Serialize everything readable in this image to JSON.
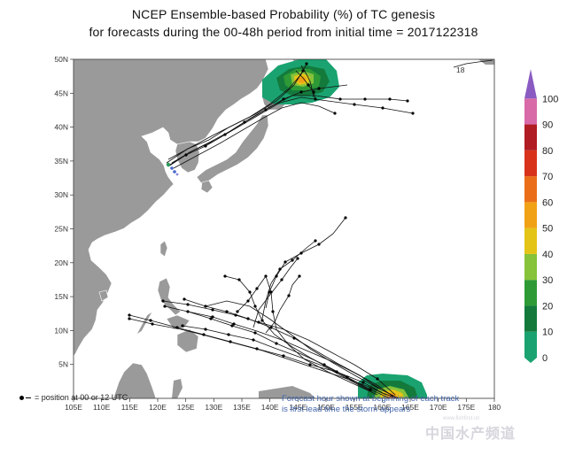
{
  "title_line1": "NCEP Ensemble-based Probability (%) of TC genesis",
  "title_line2": "for forecasts during the 00-48h period from initial time = 2017122318",
  "lon_ticks": [
    "105E",
    "110E",
    "115E",
    "120E",
    "125E",
    "130E",
    "135E",
    "140E",
    "145E",
    "150E",
    "155E",
    "160E",
    "165E",
    "170E",
    "175E",
    "180"
  ],
  "lat_ticks": [
    "5N",
    "10N",
    "15N",
    "20N",
    "25N",
    "30N",
    "35N",
    "40N",
    "45N",
    "50N"
  ],
  "colorbar": {
    "labels": [
      "0",
      "10",
      "20",
      "30",
      "40",
      "50",
      "60",
      "70",
      "80",
      "90",
      "100"
    ],
    "colors": [
      "#1aa370",
      "#137a3c",
      "#2e9a36",
      "#86c23a",
      "#e3c417",
      "#f1a116",
      "#ea6e1a",
      "#d8331a",
      "#b01d22",
      "#d96aa8",
      "#8a5cc2"
    ]
  },
  "legend_text": "= position at 00 or 12 UTC",
  "note_line1": "Forecast hour shown at beginning of each track",
  "note_line2": "is first lead time the storm appears",
  "track_label": "18",
  "watermark": "中国水产频道",
  "watermark_sub": "www.fishfirst.cn"
}
